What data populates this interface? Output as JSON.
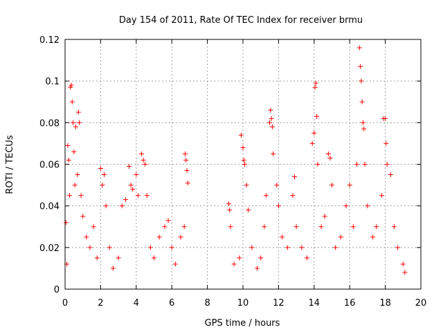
{
  "chart_data": {
    "type": "scatter",
    "title": "Day 154 of 2011, Rate Of TEC Index for receiver brmu",
    "xlabel": "GPS time / hours",
    "ylabel": "ROTI / TECUs",
    "xlim": [
      0,
      20
    ],
    "ylim": [
      0,
      0.12
    ],
    "x_ticks": [
      0,
      2,
      4,
      6,
      8,
      10,
      12,
      14,
      16,
      18,
      20
    ],
    "x_tick_labels": [
      "0",
      "2",
      "4",
      "6",
      "8",
      "10",
      "12",
      "14",
      "16",
      "18",
      "20"
    ],
    "y_ticks": [
      0,
      0.02,
      0.04,
      0.06,
      0.08,
      0.1,
      0.12
    ],
    "y_tick_labels": [
      "0",
      "0.02",
      "0.04",
      "0.06",
      "0.08",
      "0.1",
      "0.12"
    ],
    "grid": true,
    "marker": "plus",
    "series_color": "#ff0000",
    "series": [
      {
        "name": "ROTI",
        "points": [
          [
            0.05,
            0.032
          ],
          [
            0.1,
            0.012
          ],
          [
            0.15,
            0.069
          ],
          [
            0.2,
            0.062
          ],
          [
            0.25,
            0.045
          ],
          [
            0.3,
            0.097
          ],
          [
            0.35,
            0.098
          ],
          [
            0.4,
            0.09
          ],
          [
            0.45,
            0.08
          ],
          [
            0.5,
            0.066
          ],
          [
            0.55,
            0.05
          ],
          [
            0.6,
            0.078
          ],
          [
            0.7,
            0.055
          ],
          [
            0.75,
            0.085
          ],
          [
            0.8,
            0.08
          ],
          [
            0.9,
            0.045
          ],
          [
            1.0,
            0.035
          ],
          [
            1.2,
            0.025
          ],
          [
            1.4,
            0.02
          ],
          [
            1.6,
            0.03
          ],
          [
            1.8,
            0.015
          ],
          [
            2.0,
            0.058
          ],
          [
            2.1,
            0.05
          ],
          [
            2.2,
            0.055
          ],
          [
            2.3,
            0.04
          ],
          [
            2.5,
            0.02
          ],
          [
            2.7,
            0.01
          ],
          [
            3.0,
            0.015
          ],
          [
            3.2,
            0.04
          ],
          [
            3.4,
            0.043
          ],
          [
            3.6,
            0.059
          ],
          [
            3.7,
            0.05
          ],
          [
            3.8,
            0.048
          ],
          [
            4.0,
            0.055
          ],
          [
            4.1,
            0.045
          ],
          [
            4.3,
            0.065
          ],
          [
            4.4,
            0.062
          ],
          [
            4.5,
            0.06
          ],
          [
            4.6,
            0.045
          ],
          [
            4.8,
            0.02
          ],
          [
            5.0,
            0.015
          ],
          [
            5.3,
            0.025
          ],
          [
            5.6,
            0.03
          ],
          [
            5.8,
            0.033
          ],
          [
            6.0,
            0.02
          ],
          [
            6.2,
            0.012
          ],
          [
            6.5,
            0.025
          ],
          [
            6.7,
            0.03
          ],
          [
            6.75,
            0.065
          ],
          [
            6.8,
            0.062
          ],
          [
            6.85,
            0.057
          ],
          [
            6.9,
            0.051
          ],
          [
            9.2,
            0.041
          ],
          [
            9.25,
            0.038
          ],
          [
            9.3,
            0.03
          ],
          [
            9.5,
            0.012
          ],
          [
            9.8,
            0.015
          ],
          [
            9.9,
            0.074
          ],
          [
            10.0,
            0.068
          ],
          [
            10.05,
            0.062
          ],
          [
            10.1,
            0.06
          ],
          [
            10.2,
            0.05
          ],
          [
            10.3,
            0.038
          ],
          [
            10.5,
            0.02
          ],
          [
            10.8,
            0.01
          ],
          [
            11.0,
            0.015
          ],
          [
            11.2,
            0.03
          ],
          [
            11.3,
            0.045
          ],
          [
            11.5,
            0.08
          ],
          [
            11.55,
            0.086
          ],
          [
            11.6,
            0.082
          ],
          [
            11.65,
            0.078
          ],
          [
            11.7,
            0.065
          ],
          [
            11.9,
            0.05
          ],
          [
            12.0,
            0.04
          ],
          [
            12.2,
            0.025
          ],
          [
            12.5,
            0.02
          ],
          [
            12.8,
            0.045
          ],
          [
            12.9,
            0.054
          ],
          [
            13.0,
            0.03
          ],
          [
            13.3,
            0.02
          ],
          [
            13.6,
            0.015
          ],
          [
            13.9,
            0.07
          ],
          [
            14.0,
            0.075
          ],
          [
            14.05,
            0.097
          ],
          [
            14.1,
            0.099
          ],
          [
            14.15,
            0.083
          ],
          [
            14.2,
            0.06
          ],
          [
            14.4,
            0.03
          ],
          [
            14.6,
            0.035
          ],
          [
            14.8,
            0.065
          ],
          [
            14.9,
            0.063
          ],
          [
            15.0,
            0.05
          ],
          [
            15.2,
            0.02
          ],
          [
            15.5,
            0.025
          ],
          [
            15.8,
            0.04
          ],
          [
            16.0,
            0.05
          ],
          [
            16.2,
            0.03
          ],
          [
            16.4,
            0.06
          ],
          [
            16.55,
            0.116
          ],
          [
            16.6,
            0.107
          ],
          [
            16.65,
            0.1
          ],
          [
            16.7,
            0.09
          ],
          [
            16.75,
            0.08
          ],
          [
            16.8,
            0.077
          ],
          [
            16.85,
            0.06
          ],
          [
            17.0,
            0.04
          ],
          [
            17.3,
            0.025
          ],
          [
            17.5,
            0.03
          ],
          [
            17.8,
            0.045
          ],
          [
            17.9,
            0.082
          ],
          [
            18.0,
            0.082
          ],
          [
            18.05,
            0.07
          ],
          [
            18.1,
            0.06
          ],
          [
            18.3,
            0.055
          ],
          [
            18.5,
            0.03
          ],
          [
            18.7,
            0.02
          ],
          [
            19.0,
            0.012
          ],
          [
            19.1,
            0.008
          ]
        ]
      }
    ]
  }
}
